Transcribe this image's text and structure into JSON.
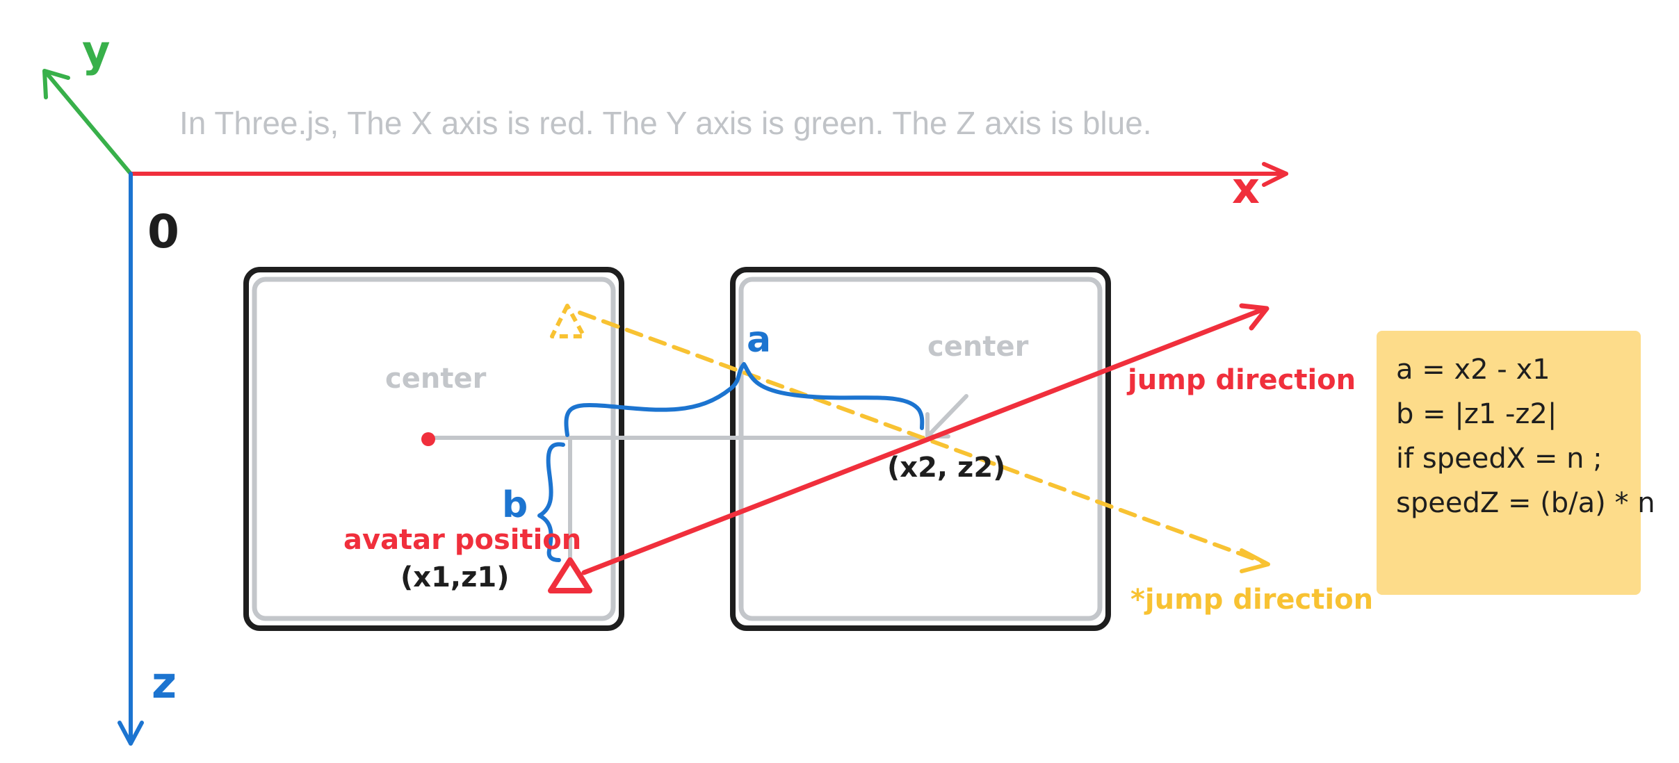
{
  "caption": "In Three.js, The X axis is red. The Y axis is green. The Z axis is blue.",
  "axes": {
    "x_label": "x",
    "y_label": "y",
    "z_label": "z",
    "origin_label": "0"
  },
  "boxes": {
    "left_center_label": "center",
    "right_center_label": "center"
  },
  "labels": {
    "a": "a",
    "b": "b",
    "avatar_position": "avatar position",
    "avatar_coords": "(x1,z1)",
    "target_coords": "(x2, z2)",
    "jump_direction": "jump direction",
    "alt_jump_direction": "*jump direction"
  },
  "note": {
    "line1": "a = x2 - x1",
    "line2": "b = |z1 -z2|",
    "line3": "",
    "line4": "if speedX = n ;",
    "line5": "speedZ = (b/a) * n"
  },
  "colors": {
    "x_axis": "#f02f3c",
    "y_axis": "#38b04a",
    "z_axis": "#1c74d0",
    "dashed": "#f8c232",
    "gray": "#c3c6ca",
    "note_bg": "#fddc8a"
  }
}
